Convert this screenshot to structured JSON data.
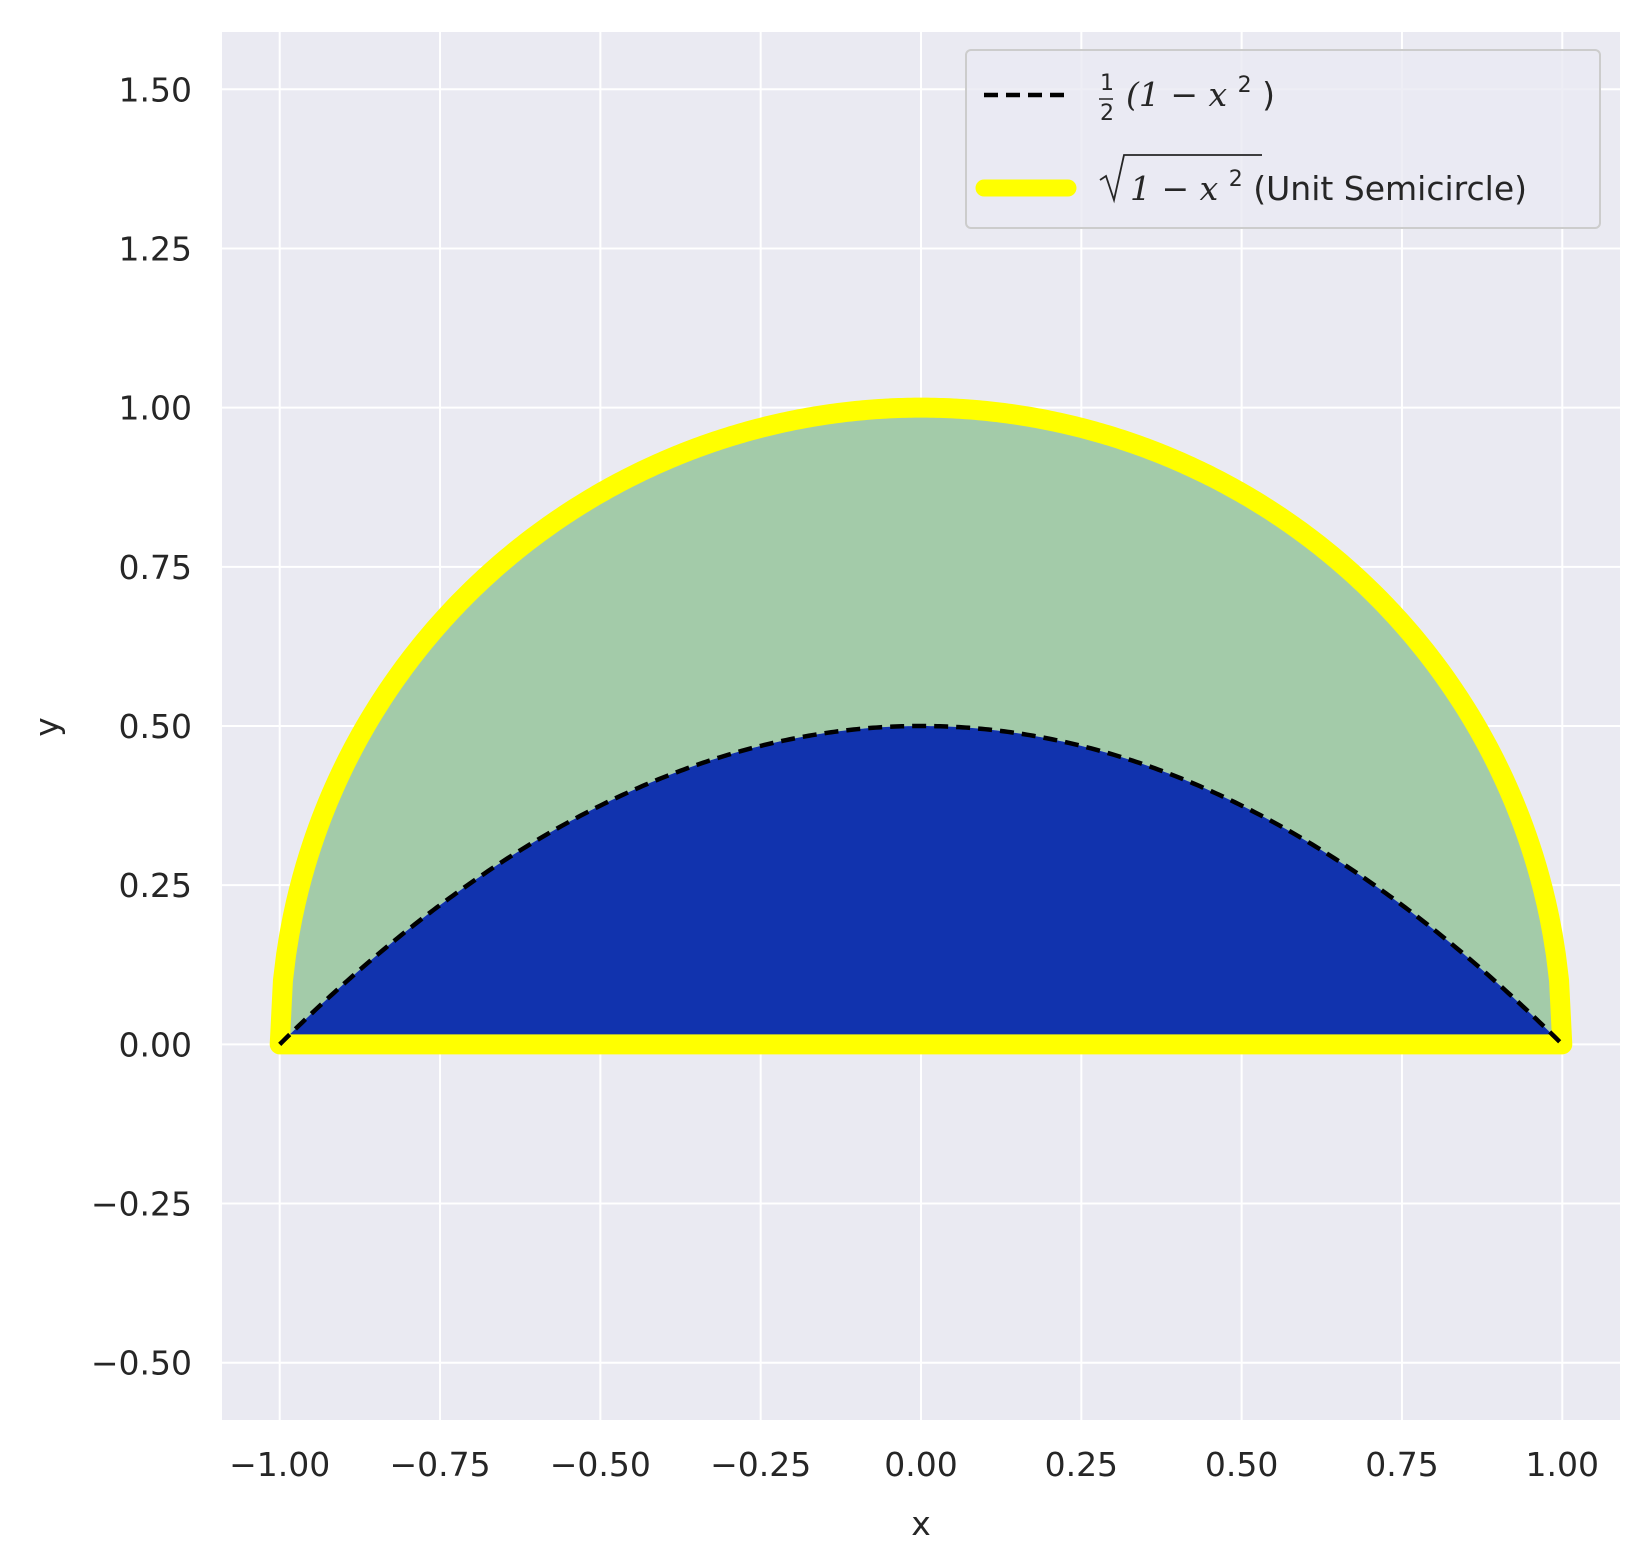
{
  "chart_data": {
    "type": "line",
    "xlabel": "x",
    "ylabel": "y",
    "xlim": [
      -1.09,
      1.09
    ],
    "ylim": [
      -0.59,
      1.59
    ],
    "xticks": [
      -1.0,
      -0.75,
      -0.5,
      -0.25,
      0.0,
      0.25,
      0.5,
      0.75,
      1.0
    ],
    "yticks": [
      -0.5,
      -0.25,
      0.0,
      0.25,
      0.5,
      0.75,
      1.0,
      1.25,
      1.5
    ],
    "xtick_labels": [
      "−1.00",
      "−0.75",
      "−0.50",
      "−0.25",
      "0.00",
      "0.25",
      "0.50",
      "0.75",
      "1.00"
    ],
    "ytick_labels": [
      "−0.50",
      "−0.25",
      "0.00",
      "0.25",
      "0.50",
      "0.75",
      "1.00",
      "1.25",
      "1.50"
    ],
    "grid": true,
    "legend_position": "top-right",
    "colors": {
      "background": "#eaeaf2",
      "grid": "#ffffff",
      "semicircle_line": "#ffff00",
      "semicircle_fill": "#a3cba9",
      "parabola_line": "#000000",
      "parabola_fill": "#1133ae"
    },
    "series": [
      {
        "name": "½(1 − x²)",
        "formula": "0.5*(1-x^2)",
        "domain": [
          -1.0,
          1.0
        ],
        "style": "dashed",
        "x": [
          -1.0,
          -0.75,
          -0.5,
          -0.25,
          0.0,
          0.25,
          0.5,
          0.75,
          1.0
        ],
        "y": [
          0.0,
          0.219,
          0.375,
          0.469,
          0.5,
          0.469,
          0.375,
          0.219,
          0.0
        ]
      },
      {
        "name": "√(1 − x²) (Unit Semicircle)",
        "formula": "sqrt(1-x^2)",
        "domain": [
          -1.0,
          1.0
        ],
        "style": "solid-thick",
        "x": [
          -1.0,
          -0.75,
          -0.5,
          -0.25,
          0.0,
          0.25,
          0.5,
          0.75,
          1.0
        ],
        "y": [
          0.0,
          0.661,
          0.866,
          0.968,
          1.0,
          0.968,
          0.866,
          0.661,
          0.0
        ]
      }
    ],
    "fills": [
      {
        "between": [
          "parabola",
          "semicircle"
        ],
        "color": "#a3cba9"
      },
      {
        "between": [
          "y=0",
          "parabola"
        ],
        "color": "#1133ae"
      }
    ],
    "legend": {
      "entry1": {
        "prefix_num": "1",
        "prefix_den": "2",
        "body": "(1 − x",
        "sup": "2",
        "close": ")"
      },
      "entry2": {
        "body": "1 − x",
        "sup": "2",
        "suffix": " (Unit Semicircle)"
      }
    }
  }
}
